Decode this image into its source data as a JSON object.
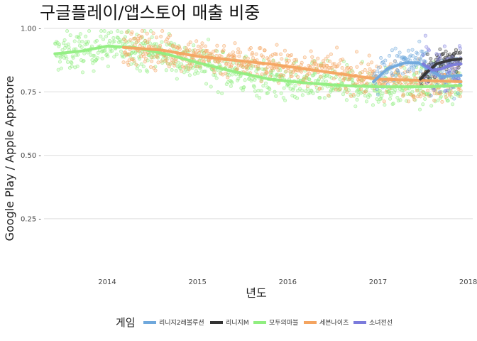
{
  "chart_data": {
    "type": "scatter",
    "title": "구글플레이/앱스토어 매출 비중",
    "xlabel": "년도",
    "ylabel": "Google Play / Apple Appstore",
    "xlim": [
      2013.3,
      2018.05
    ],
    "ylim": [
      0.02,
      1.0
    ],
    "x_ticks": [
      2014,
      2015,
      2016,
      2017,
      2018
    ],
    "x_tick_labels": [
      "2014",
      "2015",
      "2016",
      "2017",
      "2018"
    ],
    "y_ticks": [
      0.25,
      0.5,
      0.75,
      1.0
    ],
    "y_tick_labels": [
      "0.25 -",
      "0.50 -",
      "0.75 -",
      "1.00 -"
    ],
    "grid": true,
    "legend_position": "bottom",
    "legend_title": "게임",
    "series": [
      {
        "name": "리니지2레볼루션",
        "color": "#6fa8dc",
        "x_range": [
          2016.95,
          2017.92
        ],
        "trend": [
          [
            2016.95,
            0.79
          ],
          [
            2017.1,
            0.84
          ],
          [
            2017.3,
            0.865
          ],
          [
            2017.45,
            0.865
          ],
          [
            2017.55,
            0.84
          ],
          [
            2017.7,
            0.81
          ],
          [
            2017.92,
            0.815
          ]
        ],
        "spread": 0.05
      },
      {
        "name": "리니지M",
        "color": "#333333",
        "x_range": [
          2017.47,
          2017.92
        ],
        "trend": [
          [
            2017.47,
            0.8
          ],
          [
            2017.55,
            0.83
          ],
          [
            2017.65,
            0.86
          ],
          [
            2017.8,
            0.875
          ],
          [
            2017.92,
            0.88
          ]
        ],
        "spread": 0.035
      },
      {
        "name": "모두의마블",
        "color": "#90ee80",
        "x_range": [
          2013.42,
          2017.92
        ],
        "trend": [
          [
            2013.42,
            0.9
          ],
          [
            2013.7,
            0.91
          ],
          [
            2014.0,
            0.93
          ],
          [
            2014.3,
            0.925
          ],
          [
            2014.7,
            0.895
          ],
          [
            2015.0,
            0.865
          ],
          [
            2015.4,
            0.83
          ],
          [
            2015.8,
            0.8
          ],
          [
            2016.2,
            0.785
          ],
          [
            2016.6,
            0.775
          ],
          [
            2017.0,
            0.77
          ],
          [
            2017.5,
            0.77
          ],
          [
            2017.92,
            0.775
          ]
        ],
        "spread": 0.055
      },
      {
        "name": "세븐나이츠",
        "color": "#f4a460",
        "x_range": [
          2014.18,
          2017.92
        ],
        "trend": [
          [
            2014.18,
            0.925
          ],
          [
            2014.6,
            0.915
          ],
          [
            2015.0,
            0.89
          ],
          [
            2015.4,
            0.875
          ],
          [
            2015.8,
            0.86
          ],
          [
            2016.2,
            0.84
          ],
          [
            2016.6,
            0.82
          ],
          [
            2017.0,
            0.8
          ],
          [
            2017.5,
            0.795
          ],
          [
            2017.92,
            0.79
          ]
        ],
        "spread": 0.05
      },
      {
        "name": "소녀전선",
        "color": "#7b7bdc",
        "x_range": [
          2017.5,
          2017.92
        ],
        "trend": [
          [
            2017.5,
            0.86
          ],
          [
            2017.6,
            0.835
          ],
          [
            2017.7,
            0.84
          ],
          [
            2017.8,
            0.855
          ],
          [
            2017.92,
            0.86
          ]
        ],
        "spread": 0.06
      }
    ]
  }
}
